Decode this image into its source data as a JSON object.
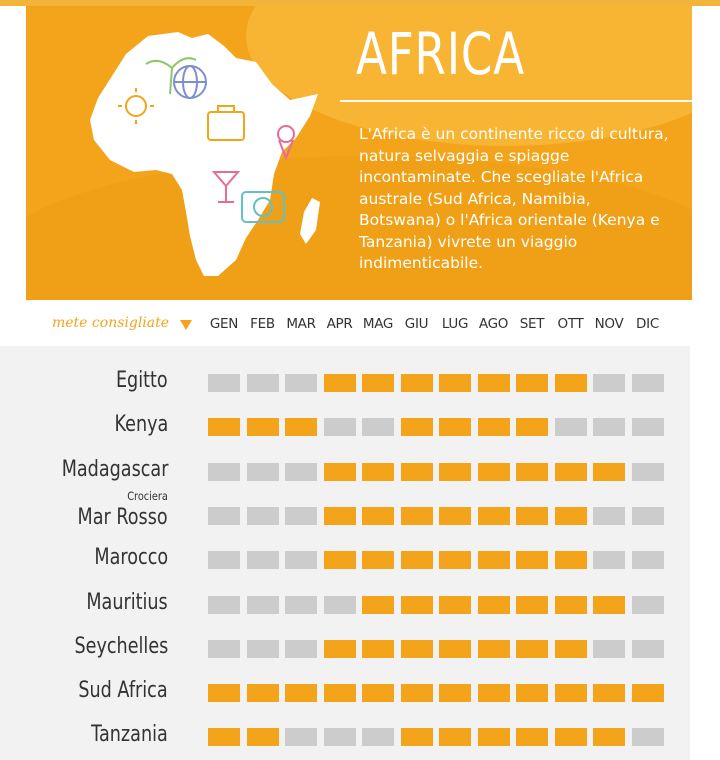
{
  "header": {
    "title": "AFRICA",
    "description": "L'Africa è un continente ricco di cultura, natura selvaggia e spiagge incontaminate. Che scegliate l'Africa australe (Sud Africa, Namibia, Botswana) o l'Africa orientale (Kenya e Tanzania) vivrete un viaggio indimenticabile."
  },
  "calendar": {
    "legend_label": "mete consigliate",
    "months": [
      "GEN",
      "FEB",
      "MAR",
      "APR",
      "MAG",
      "GIU",
      "LUG",
      "AGO",
      "SET",
      "OTT",
      "NOV",
      "DIC"
    ],
    "destinations": [
      {
        "name": "Egitto",
        "recommended": [
          0,
          0,
          0,
          1,
          1,
          1,
          1,
          1,
          1,
          1,
          0,
          0
        ]
      },
      {
        "name": "Kenya",
        "recommended": [
          1,
          1,
          1,
          0,
          0,
          1,
          1,
          1,
          1,
          0,
          0,
          0
        ]
      },
      {
        "name": "Madagascar",
        "recommended": [
          0,
          0,
          0,
          1,
          1,
          1,
          1,
          1,
          1,
          1,
          1,
          0
        ]
      },
      {
        "name_top": "Crociera",
        "name": "Mar Rosso",
        "recommended": [
          0,
          0,
          0,
          1,
          1,
          1,
          1,
          1,
          1,
          1,
          0,
          0
        ]
      },
      {
        "name": "Marocco",
        "recommended": [
          0,
          0,
          0,
          1,
          1,
          1,
          1,
          1,
          1,
          1,
          0,
          0
        ]
      },
      {
        "name": "Mauritius",
        "recommended": [
          0,
          0,
          0,
          0,
          1,
          1,
          1,
          1,
          1,
          1,
          1,
          0
        ]
      },
      {
        "name": "Seychelles",
        "recommended": [
          0,
          0,
          0,
          1,
          1,
          1,
          1,
          1,
          1,
          1,
          0,
          0
        ]
      },
      {
        "name": "Sud Africa",
        "recommended": [
          1,
          1,
          1,
          1,
          1,
          1,
          1,
          1,
          1,
          1,
          1,
          1
        ]
      },
      {
        "name": "Tanzania",
        "recommended": [
          1,
          1,
          0,
          0,
          0,
          1,
          1,
          1,
          1,
          1,
          1,
          0
        ]
      }
    ]
  },
  "colors": {
    "accent": "#f3a41a",
    "inactive": "#cccccc",
    "text": "#333333"
  }
}
